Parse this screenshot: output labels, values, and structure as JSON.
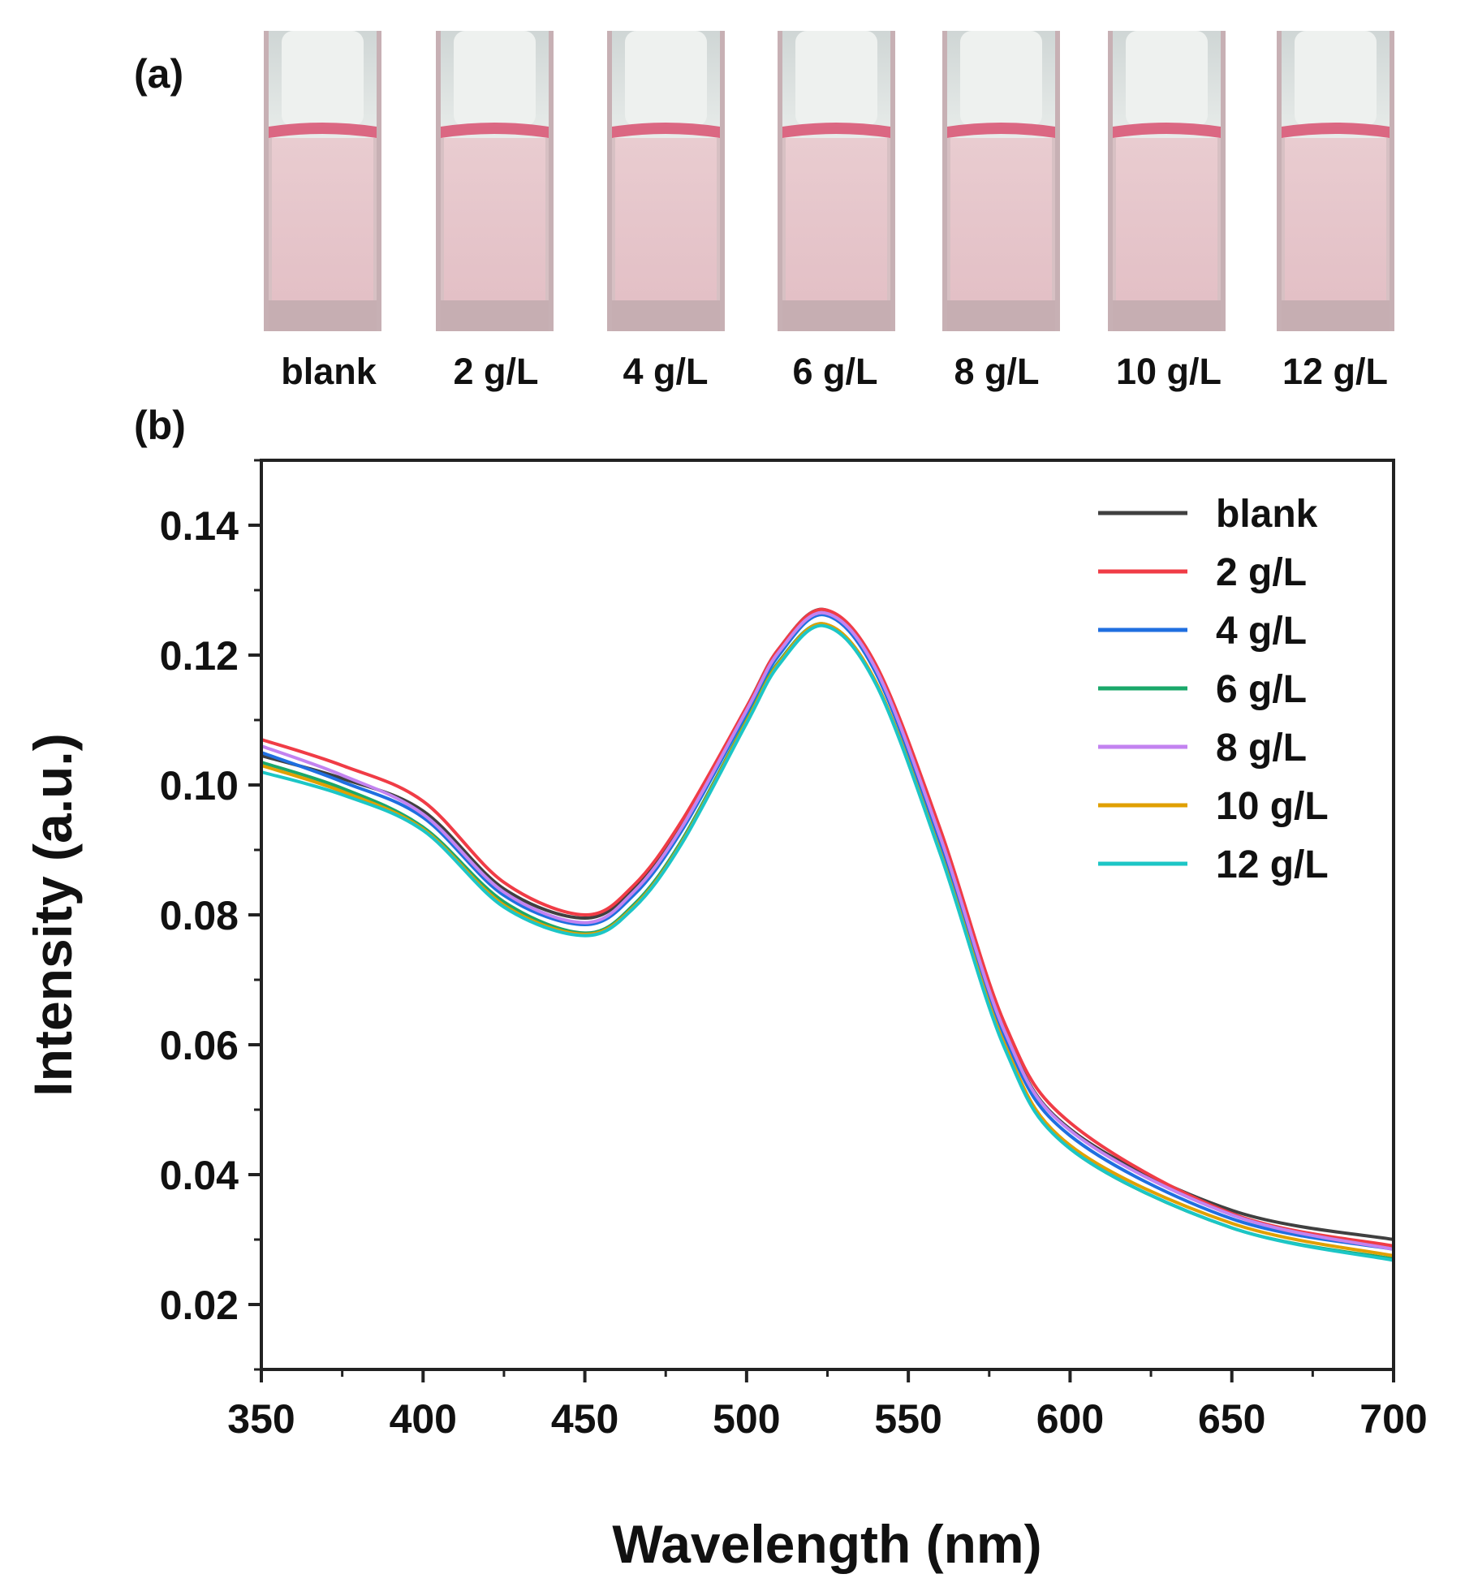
{
  "panels": {
    "a_label": "(a)",
    "b_label": "(b)"
  },
  "cuvettes": [
    {
      "label": "blank"
    },
    {
      "label": "2 g/L"
    },
    {
      "label": "4 g/L"
    },
    {
      "label": "6 g/L"
    },
    {
      "label": "8 g/L"
    },
    {
      "label": "10 g/L"
    },
    {
      "label": "12 g/L"
    }
  ],
  "chart_data": {
    "type": "line",
    "title": "",
    "xlabel": "Wavelength (nm)",
    "ylabel": "Intensity (a.u.)",
    "xlim": [
      350,
      700
    ],
    "ylim": [
      0.01,
      0.15
    ],
    "xticks": [
      350,
      400,
      450,
      500,
      550,
      600,
      650,
      700
    ],
    "yticks": [
      0.02,
      0.04,
      0.06,
      0.08,
      0.1,
      0.12,
      0.14
    ],
    "ytick_labels": [
      "0.02",
      "0.04",
      "0.06",
      "0.08",
      "0.10",
      "0.12",
      "0.14"
    ],
    "grid": false,
    "legend_position": "top-right",
    "x": [
      350,
      375,
      400,
      425,
      450,
      465,
      480,
      500,
      510,
      524,
      540,
      560,
      580,
      600,
      650,
      700
    ],
    "series": [
      {
        "name": "blank",
        "color": "#404040",
        "values": [
          0.1045,
          0.101,
          0.096,
          0.084,
          0.0795,
          0.084,
          0.094,
          0.112,
          0.121,
          0.127,
          0.118,
          0.092,
          0.062,
          0.047,
          0.0345,
          0.03
        ]
      },
      {
        "name": "2 g/L",
        "color": "#f03c46",
        "values": [
          0.107,
          0.103,
          0.0975,
          0.085,
          0.08,
          0.0845,
          0.0945,
          0.112,
          0.121,
          0.127,
          0.1185,
          0.093,
          0.063,
          0.048,
          0.034,
          0.029
        ]
      },
      {
        "name": "4 g/L",
        "color": "#1f6fe0",
        "values": [
          0.105,
          0.1005,
          0.095,
          0.083,
          0.0785,
          0.083,
          0.093,
          0.111,
          0.12,
          0.1262,
          0.1172,
          0.091,
          0.061,
          0.046,
          0.0332,
          0.0285
        ]
      },
      {
        "name": "6 g/L",
        "color": "#1aa86a",
        "values": [
          0.1035,
          0.0995,
          0.0935,
          0.082,
          0.0772,
          0.0815,
          0.0915,
          0.11,
          0.119,
          0.1248,
          0.1158,
          0.0895,
          0.0595,
          0.044,
          0.0318,
          0.027
        ]
      },
      {
        "name": "8 g/L",
        "color": "#c383f0",
        "values": [
          0.106,
          0.1015,
          0.0955,
          0.0835,
          0.0788,
          0.0835,
          0.0935,
          0.1115,
          0.1205,
          0.1265,
          0.1178,
          0.0918,
          0.0618,
          0.0468,
          0.0338,
          0.0285
        ]
      },
      {
        "name": "10 g/L",
        "color": "#e0a000",
        "values": [
          0.103,
          0.099,
          0.0932,
          0.0815,
          0.077,
          0.0812,
          0.0912,
          0.1098,
          0.1188,
          0.1248,
          0.1158,
          0.0895,
          0.0598,
          0.0445,
          0.0325,
          0.0275
        ]
      },
      {
        "name": "12 g/L",
        "color": "#1cc6c6",
        "values": [
          0.102,
          0.0985,
          0.093,
          0.0812,
          0.0768,
          0.081,
          0.091,
          0.1095,
          0.1185,
          0.1245,
          0.1155,
          0.0892,
          0.0592,
          0.044,
          0.0318,
          0.0268
        ]
      }
    ]
  }
}
